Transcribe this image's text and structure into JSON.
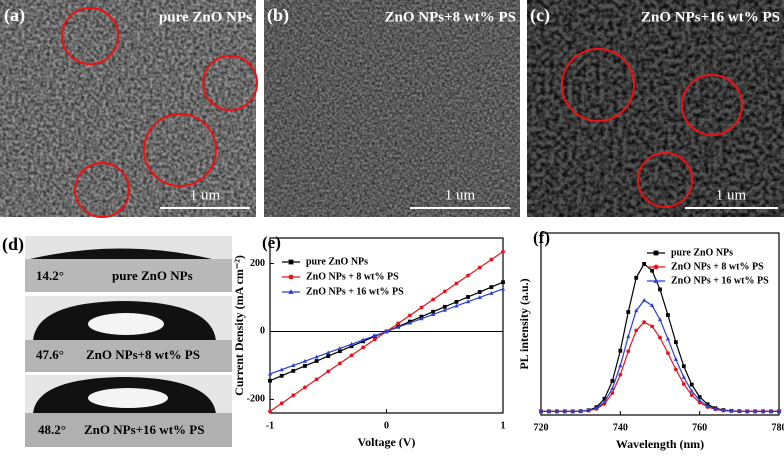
{
  "panels": {
    "a": {
      "label": "(a)",
      "caption": "pure ZnO NPs",
      "scale": "1 um"
    },
    "b": {
      "label": "(b)",
      "caption": "ZnO NPs+8 wt% PS",
      "scale": "1 um"
    },
    "c": {
      "label": "(c)",
      "caption": "ZnO NPs+16 wt% PS",
      "scale": "1 um"
    }
  },
  "contact_angle": {
    "label": "(d)",
    "samples": [
      {
        "angle": "14.2°",
        "name": "pure ZnO NPs"
      },
      {
        "angle": "47.6°",
        "name": "ZnO NPs+8 wt% PS"
      },
      {
        "angle": "48.2°",
        "name": "ZnO NPs+16 wt% PS"
      }
    ]
  },
  "chart_data": [
    {
      "type": "line",
      "panel_label": "(e)",
      "xlabel": "Voltage (V)",
      "ylabel": "Current Density (mA cm⁻²)",
      "x": [
        -1,
        -0.9,
        -0.8,
        -0.7,
        -0.6,
        -0.5,
        -0.4,
        -0.3,
        -0.2,
        -0.1,
        0,
        0.1,
        0.2,
        0.3,
        0.4,
        0.5,
        0.6,
        0.7,
        0.8,
        0.9,
        1
      ],
      "xlim": [
        -1,
        1
      ],
      "xticks": [
        -1,
        0,
        1
      ],
      "ylim": [
        -240,
        275
      ],
      "yticks": [
        -200,
        0,
        200
      ],
      "zero_line": true,
      "legend": "upper left",
      "series": [
        {
          "name": "pure ZnO NPs",
          "color": "#000000",
          "marker": "square",
          "values": [
            -145,
            -130.5,
            -116,
            -101.5,
            -87,
            -72.5,
            -58,
            -43.5,
            -29,
            -14.5,
            0,
            14.5,
            29,
            43.5,
            58,
            72.5,
            87,
            101.5,
            116,
            130.5,
            145
          ]
        },
        {
          "name": "ZnO NPs + 8 wt% PS",
          "color": "#e8141c",
          "marker": "circle",
          "values": [
            -235,
            -211.5,
            -188,
            -164.5,
            -141,
            -117.5,
            -94,
            -70.5,
            -47,
            -23.5,
            0,
            23.5,
            47,
            70.5,
            94,
            117.5,
            141,
            164.5,
            188,
            211.5,
            235
          ]
        },
        {
          "name": "ZnO NPs + 16 wt% PS",
          "color": "#2a3fd4",
          "marker": "triangle",
          "values": [
            -125,
            -112.5,
            -100,
            -87.5,
            -75,
            -62.5,
            -50,
            -37.5,
            -25,
            -12.5,
            0,
            12.5,
            25,
            37.5,
            50,
            62.5,
            75,
            87.5,
            100,
            112.5,
            125
          ]
        }
      ]
    },
    {
      "type": "line",
      "panel_label": "(f)",
      "xlabel": "Wavelength (nm)",
      "ylabel": "PL intensity (a.u.)",
      "x": [
        720,
        722,
        724,
        726,
        728,
        730,
        732,
        734,
        736,
        738,
        740,
        742,
        744,
        746,
        748,
        750,
        752,
        754,
        756,
        758,
        760,
        762,
        764,
        766,
        768,
        770,
        772,
        774,
        776,
        778,
        780
      ],
      "xlim": [
        720,
        780
      ],
      "xticks": [
        720,
        740,
        760,
        780
      ],
      "ylim": [
        0,
        100
      ],
      "legend": "upper right",
      "series": [
        {
          "name": "pure ZnO NPs",
          "color": "#000000",
          "marker": "square",
          "values": [
            2.0,
            2.0,
            2.0,
            2.0,
            2.0,
            2.1,
            2.6,
            4.3,
            8.9,
            18.7,
            35.3,
            56.6,
            75.4,
            83.0,
            79.3,
            69.0,
            54.9,
            40.0,
            26.8,
            16.7,
            9.9,
            5.9,
            3.7,
            2.7,
            2.3,
            2.1,
            2.0,
            2.0,
            2.0,
            2.0,
            2.0
          ]
        },
        {
          "name": "ZnO NPs + 8 wt% PS",
          "color": "#e8141c",
          "marker": "circle",
          "values": [
            2.0,
            2.0,
            2.0,
            2.0,
            2.0,
            2.1,
            2.4,
            3.4,
            6.1,
            12.1,
            22.1,
            35.0,
            46.4,
            51.0,
            48.7,
            42.5,
            34.0,
            25.0,
            17.0,
            10.9,
            6.8,
            4.4,
            3.1,
            2.4,
            2.2,
            2.1,
            2.0,
            2.0,
            2.0,
            2.0,
            2.0
          ]
        },
        {
          "name": "ZnO NPs + 16 wt% PS",
          "color": "#2a3fd4",
          "marker": "triangle",
          "values": [
            2.0,
            2.0,
            2.0,
            2.0,
            2.0,
            2.1,
            2.5,
            3.7,
            7.2,
            14.6,
            27.1,
            43.1,
            57.3,
            63.0,
            60.2,
            52.4,
            41.8,
            30.6,
            20.7,
            13.1,
            8.0,
            4.9,
            3.3,
            2.5,
            2.2,
            2.1,
            2.0,
            2.0,
            2.0,
            2.0,
            2.0
          ]
        }
      ]
    }
  ]
}
